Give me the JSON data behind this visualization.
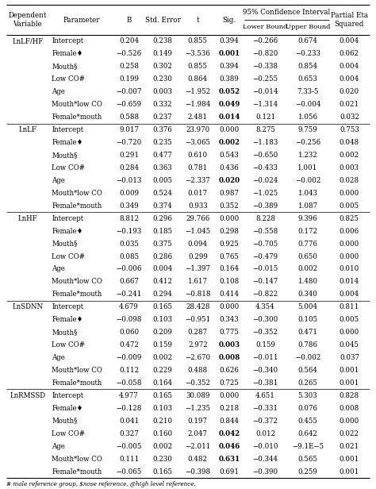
{
  "footer": "# male reference group, $nose reference, @high level reference.",
  "rows": [
    [
      "LnLF/HF",
      "Intercept",
      "0.204",
      "0.238",
      "0.855",
      "0.394",
      "−0.266",
      "0.674",
      "0.004"
    ],
    [
      "",
      "Female♦",
      "−0.526",
      "0.149",
      "−3.536",
      "0.001",
      "−0.820",
      "−0.233",
      "0.062"
    ],
    [
      "",
      "Mouth§",
      "0.258",
      "0.302",
      "0.855",
      "0.394",
      "−0.338",
      "0.854",
      "0.004"
    ],
    [
      "",
      "Low CO#",
      "0.199",
      "0.230",
      "0.864",
      "0.389",
      "−0.255",
      "0.653",
      "0.004"
    ],
    [
      "",
      "Age",
      "−0.007",
      "0.003",
      "−1.952",
      "0.052",
      "−0.014",
      "7.33-5",
      "0.020"
    ],
    [
      "",
      "Mouth*low CO",
      "−0.659",
      "0.332",
      "−1.984",
      "0.049",
      "−1.314",
      "−0.004",
      "0.021"
    ],
    [
      "",
      "Female*mouth",
      "0.588",
      "0.237",
      "2.481",
      "0.014",
      "0.121",
      "1.056",
      "0.032"
    ],
    [
      "LnLF",
      "Intercept",
      "9.017",
      "0.376",
      "23.970",
      "0.000",
      "8.275",
      "9.759",
      "0.753"
    ],
    [
      "",
      "Female♦",
      "−0.720",
      "0.235",
      "−3.065",
      "0.002",
      "−1.183",
      "−0.256",
      "0.048"
    ],
    [
      "",
      "Mouth§",
      "0.291",
      "0.477",
      "0.610",
      "0.543",
      "−0.650",
      "1.232",
      "0.002"
    ],
    [
      "",
      "Low CO#",
      "0.284",
      "0.363",
      "0.781",
      "0.436",
      "−0.433",
      "1.001",
      "0.003"
    ],
    [
      "",
      "Age",
      "−0.013",
      "0.005",
      "−2.337",
      "0.020",
      "−0.024",
      "−0.002",
      "0.028"
    ],
    [
      "",
      "Mouth*low CO",
      "0.009",
      "0.524",
      "0.017",
      "0.987",
      "−1.025",
      "1.043",
      "0.000"
    ],
    [
      "",
      "Female*mouth",
      "0.349",
      "0.374",
      "0.933",
      "0.352",
      "−0.389",
      "1.087",
      "0.005"
    ],
    [
      "LnHF",
      "Intercept",
      "8.812",
      "0.296",
      "29.766",
      "0.000",
      "8.228",
      "9.396",
      "0.825"
    ],
    [
      "",
      "Female♦",
      "−0.193",
      "0.185",
      "−1.045",
      "0.298",
      "−0.558",
      "0.172",
      "0.006"
    ],
    [
      "",
      "Mouth§",
      "0.035",
      "0.375",
      "0.094",
      "0.925",
      "−0.705",
      "0.776",
      "0.000"
    ],
    [
      "",
      "Low CO#",
      "0.085",
      "0.286",
      "0.299",
      "0.765",
      "−0.479",
      "0.650",
      "0.000"
    ],
    [
      "",
      "Age",
      "−0.006",
      "0.004",
      "−1.397",
      "0.164",
      "−0.015",
      "0.002",
      "0.010"
    ],
    [
      "",
      "Mouth*low CO",
      "0.667",
      "0.412",
      "1.617",
      "0.108",
      "−0.147",
      "1.480",
      "0.014"
    ],
    [
      "",
      "Female*mouth",
      "−0.241",
      "0.294",
      "−0.818",
      "0.414",
      "−0.822",
      "0.340",
      "0.004"
    ],
    [
      "LnSDNN",
      "Intercept",
      "4.679",
      "0.165",
      "28.428",
      "0.000",
      "4.354",
      "5.004",
      "0.811"
    ],
    [
      "",
      "Female♦",
      "−0.098",
      "0.103",
      "−0.951",
      "0.343",
      "−0.300",
      "0.105",
      "0.005"
    ],
    [
      "",
      "Mouth§",
      "0.060",
      "0.209",
      "0.287",
      "0.775",
      "−0.352",
      "0.471",
      "0.000"
    ],
    [
      "",
      "Low CO#",
      "0.472",
      "0.159",
      "2.972",
      "0.003",
      "0.159",
      "0.786",
      "0.045"
    ],
    [
      "",
      "Age",
      "−0.009",
      "0.002",
      "−2.670",
      "0.008",
      "−0.011",
      "−0.002",
      "0.037"
    ],
    [
      "",
      "Mouth*low CO",
      "0.112",
      "0.229",
      "0.488",
      "0.626",
      "−0.340",
      "0.564",
      "0.001"
    ],
    [
      "",
      "Female*mouth",
      "−0.058",
      "0.164",
      "−0.352",
      "0.725",
      "−0.381",
      "0.265",
      "0.001"
    ],
    [
      "LnRMSSD",
      "Intercept",
      "4.977",
      "0.165",
      "30.089",
      "0.000",
      "4.651",
      "5.303",
      "0.828"
    ],
    [
      "",
      "Female♦",
      "−0.128",
      "0.103",
      "−1.235",
      "0.218",
      "−0.331",
      "0.076",
      "0.008"
    ],
    [
      "",
      "Mouth§",
      "0.041",
      "0.210",
      "0.197",
      "0.844",
      "−0.372",
      "0.455",
      "0.000"
    ],
    [
      "",
      "Low CO#",
      "0.327",
      "0.160",
      "2.047",
      "0.042",
      "0.012",
      "0.642",
      "0.022"
    ],
    [
      "",
      "Age",
      "−0.005",
      "0.002",
      "−2.011",
      "0.046",
      "−0.010",
      "−9.1E−5",
      "0.021"
    ],
    [
      "",
      "Mouth*low CO",
      "0.111",
      "0.230",
      "0.482",
      "0.631",
      "−0.344",
      "0.565",
      "0.001"
    ],
    [
      "",
      "Female*mouth",
      "−0.065",
      "0.165",
      "−0.398",
      "0.691",
      "−0.390",
      "0.259",
      "0.001"
    ]
  ],
  "bold_sig_rows": [
    1,
    4,
    5,
    6,
    8,
    11,
    24,
    25,
    31,
    32,
    33
  ],
  "group_separators": [
    7,
    14,
    21,
    28
  ],
  "bg_color": "#ffffff"
}
